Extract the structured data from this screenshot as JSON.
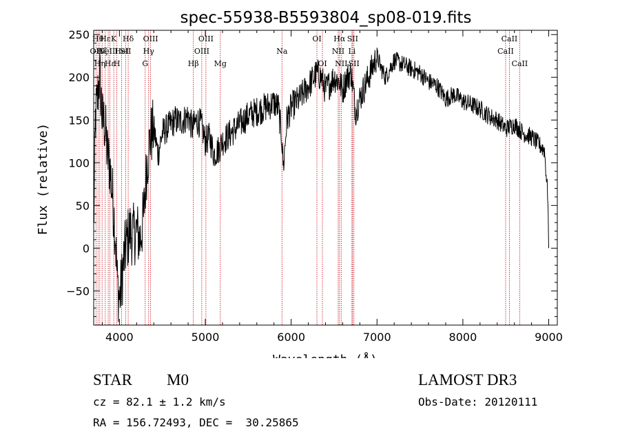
{
  "chart_data": {
    "type": "line",
    "title": "spec-55938-B5593804_sp08-019.fits",
    "xlabel": "Wavelength (Å)",
    "ylabel": "Flux (relative)",
    "xlim": [
      3700,
      9100
    ],
    "ylim": [
      -90,
      255
    ],
    "xticks": [
      4000,
      5000,
      6000,
      7000,
      8000,
      9000
    ],
    "yticks": [
      -50,
      0,
      50,
      100,
      150,
      200,
      250
    ],
    "series": [
      {
        "name": "flux",
        "anchors": [
          [
            3700,
            20
          ],
          [
            3720,
            150
          ],
          [
            3745,
            175
          ],
          [
            3770,
            205
          ],
          [
            3800,
            150
          ],
          [
            3830,
            145
          ],
          [
            3860,
            110
          ],
          [
            3890,
            95
          ],
          [
            3920,
            60
          ],
          [
            3950,
            20
          ],
          [
            3975,
            -40
          ],
          [
            4000,
            -60
          ],
          [
            4020,
            -45
          ],
          [
            4050,
            -15
          ],
          [
            4080,
            5
          ],
          [
            4120,
            20
          ],
          [
            4160,
            15
          ],
          [
            4200,
            20
          ],
          [
            4240,
            10
          ],
          [
            4280,
            35
          ],
          [
            4320,
            100
          ],
          [
            4360,
            130
          ],
          [
            4400,
            140
          ],
          [
            4450,
            110
          ],
          [
            4500,
            135
          ],
          [
            4550,
            140
          ],
          [
            4600,
            145
          ],
          [
            4650,
            150
          ],
          [
            4700,
            148
          ],
          [
            4750,
            150
          ],
          [
            4800,
            155
          ],
          [
            4850,
            140
          ],
          [
            4900,
            150
          ],
          [
            4950,
            145
          ],
          [
            5000,
            125
          ],
          [
            5050,
            130
          ],
          [
            5100,
            110
          ],
          [
            5150,
            115
          ],
          [
            5200,
            125
          ],
          [
            5300,
            135
          ],
          [
            5400,
            145
          ],
          [
            5500,
            155
          ],
          [
            5600,
            160
          ],
          [
            5700,
            165
          ],
          [
            5800,
            170
          ],
          [
            5850,
            165
          ],
          [
            5890,
            130
          ],
          [
            5910,
            95
          ],
          [
            5950,
            150
          ],
          [
            6000,
            165
          ],
          [
            6100,
            175
          ],
          [
            6200,
            190
          ],
          [
            6300,
            205
          ],
          [
            6350,
            200
          ],
          [
            6400,
            185
          ],
          [
            6500,
            200
          ],
          [
            6560,
            195
          ],
          [
            6600,
            185
          ],
          [
            6650,
            200
          ],
          [
            6700,
            205
          ],
          [
            6750,
            160
          ],
          [
            6800,
            175
          ],
          [
            6900,
            200
          ],
          [
            7000,
            225
          ],
          [
            7050,
            210
          ],
          [
            7100,
            200
          ],
          [
            7200,
            220
          ],
          [
            7300,
            215
          ],
          [
            7400,
            210
          ],
          [
            7500,
            205
          ],
          [
            7600,
            195
          ],
          [
            7700,
            190
          ],
          [
            7800,
            175
          ],
          [
            7900,
            180
          ],
          [
            8000,
            172
          ],
          [
            8100,
            168
          ],
          [
            8200,
            163
          ],
          [
            8300,
            155
          ],
          [
            8400,
            150
          ],
          [
            8500,
            140
          ],
          [
            8600,
            145
          ],
          [
            8700,
            135
          ],
          [
            8800,
            130
          ],
          [
            8900,
            120
          ],
          [
            8950,
            115
          ],
          [
            8990,
            60
          ],
          [
            9000,
            0
          ]
        ]
      }
    ],
    "lines": [
      {
        "x": 3727,
        "label": "OII",
        "row": 2
      },
      {
        "x": 3750,
        "label": "Hθ",
        "row": 1
      },
      {
        "x": 3771,
        "label": "Hη",
        "row": 3
      },
      {
        "x": 3798,
        "label": "Hζ",
        "row": 2
      },
      {
        "x": 3835,
        "label": "Hε",
        "row": 1
      },
      {
        "x": 3869,
        "label": "NeIII",
        "row": 2
      },
      {
        "x": 3889,
        "label": "Hε",
        "row": 3
      },
      {
        "x": 3934,
        "label": "K",
        "row": 1
      },
      {
        "x": 3970,
        "label": "H",
        "row": 3
      },
      {
        "x": 4026,
        "label": "HeI",
        "row": 2
      },
      {
        "x": 4072,
        "label": "SII",
        "row": 2
      },
      {
        "x": 4102,
        "label": "Hδ",
        "row": 1
      },
      {
        "x": 4300,
        "label": "G",
        "row": 3
      },
      {
        "x": 4340,
        "label": "Hγ",
        "row": 2
      },
      {
        "x": 4363,
        "label": "OIII",
        "row": 1
      },
      {
        "x": 4861,
        "label": "Hβ",
        "row": 3
      },
      {
        "x": 4959,
        "label": "OIII",
        "row": 2
      },
      {
        "x": 5007,
        "label": "OIII",
        "row": 1
      },
      {
        "x": 5175,
        "label": "Mg",
        "row": 3
      },
      {
        "x": 5893,
        "label": "Na",
        "row": 2
      },
      {
        "x": 6300,
        "label": "OI",
        "row": 1
      },
      {
        "x": 6364,
        "label": "OI",
        "row": 3
      },
      {
        "x": 6548,
        "label": "NII",
        "row": 2
      },
      {
        "x": 6563,
        "label": "Hα",
        "row": 1
      },
      {
        "x": 6583,
        "label": "NII",
        "row": 3
      },
      {
        "x": 6708,
        "label": "Li",
        "row": 2
      },
      {
        "x": 6716,
        "label": "SII",
        "row": 1
      },
      {
        "x": 6731,
        "label": "SII",
        "row": 3
      },
      {
        "x": 8498,
        "label": "CaII",
        "row": 2
      },
      {
        "x": 8542,
        "label": "CaII",
        "row": 1
      },
      {
        "x": 8662,
        "label": "CaII",
        "row": 3
      }
    ]
  },
  "info": {
    "class_label": "STAR",
    "subclass": "M0",
    "survey": "LAMOST DR3",
    "redshift": "cz = 82.1 ± 1.2 km/s",
    "obs_date": "Obs-Date: 20120111",
    "coords": "RA = 156.72493, DEC =  30.25865"
  },
  "colors": {
    "line_marker": "#c8000a",
    "spectrum": "#000000",
    "axis": "#000000"
  }
}
